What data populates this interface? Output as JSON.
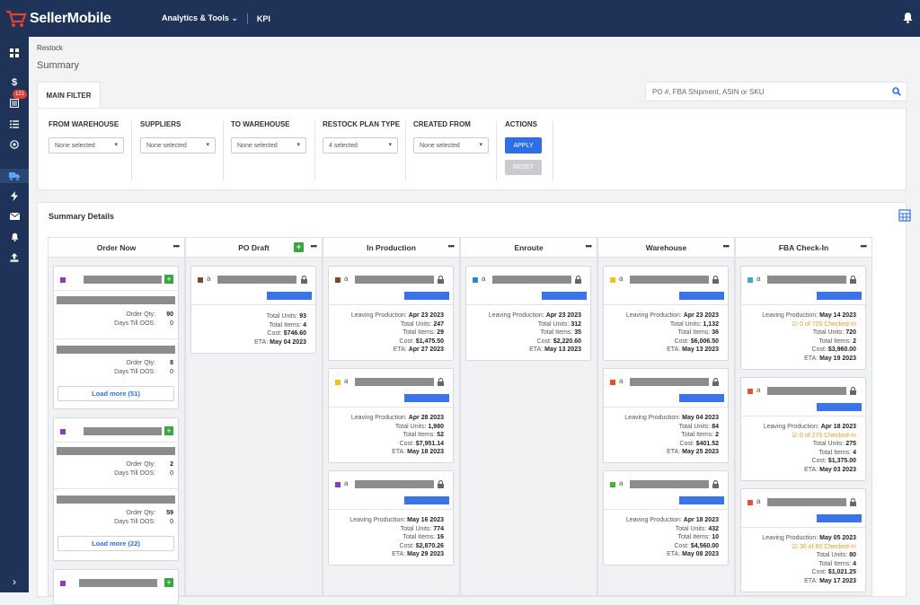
{
  "app": {
    "name": "SellerMobile"
  },
  "nav": {
    "analytics": "Analytics & Tools ⌄",
    "kpi": "KPI"
  },
  "sidebar": {
    "badge": "121"
  },
  "breadcrumb": "Restock",
  "page_title": "Summary",
  "tab": "MAIN FILTER",
  "search": {
    "placeholder": "PO #, FBA Shipment, ASIN or SKU"
  },
  "filters": {
    "from_warehouse": {
      "label": "FROM WAREHOUSE",
      "value": "None selected"
    },
    "suppliers": {
      "label": "SUPPLIERS",
      "value": "None selected"
    },
    "to_warehouse": {
      "label": "TO WAREHOUSE",
      "value": "None selected"
    },
    "restock_plan_type": {
      "label": "RESTOCK PLAN TYPE",
      "value": "4 selected"
    },
    "created_from": {
      "label": "CREATED FROM",
      "value": "None selected"
    },
    "actions": {
      "label": "ACTIONS",
      "apply": "APPLY",
      "reset": "RESET"
    }
  },
  "details": {
    "title": "Summary Details"
  },
  "columns": [
    {
      "name": "Order Now"
    },
    {
      "name": "PO Draft"
    },
    {
      "name": "In Production"
    },
    {
      "name": "Enroute"
    },
    {
      "name": "Warehouse"
    },
    {
      "name": "FBA Check-In"
    }
  ],
  "order_now": {
    "card1": {
      "qty_label": "Order Qty:",
      "qty1": "90",
      "oos_label": "Days Till OOS:",
      "oos1": "0",
      "qty2": "8",
      "oos2": "0",
      "load": "Load more (51)"
    },
    "card2": {
      "qty_label": "Order Qty:",
      "qty1": "2",
      "oos_label": "Days Till OOS:",
      "oos1": "0",
      "qty2": "59",
      "oos2": "0",
      "load": "Load more (22)"
    }
  },
  "po_draft": {
    "card1": {
      "units_label": "Total Units:",
      "units": "93",
      "items_label": "Total Items:",
      "items": "4",
      "cost_label": "Cost:",
      "cost": "$746.60",
      "eta_label": "ETA:",
      "eta": "May 04 2023"
    }
  },
  "in_production": [
    {
      "lp": "Apr 23 2023",
      "units": "247",
      "items": "29",
      "cost": "$1,475.50",
      "eta": "Apr 27 2023"
    },
    {
      "lp": "Apr 28 2023",
      "units": "1,980",
      "items": "52",
      "cost": "$7,951.14",
      "eta": "May 18 2023"
    },
    {
      "lp": "May 16 2023",
      "units": "774",
      "items": "16",
      "cost": "$2,870.26",
      "eta": "May 29 2023"
    }
  ],
  "enroute": [
    {
      "lp": "Apr 23 2023",
      "units": "312",
      "items": "35",
      "cost": "$2,220.60",
      "eta": "May 13 2023"
    }
  ],
  "warehouse": [
    {
      "lp": "Apr 23 2023",
      "units": "1,132",
      "items": "36",
      "cost": "$6,006.50",
      "eta": "May 13 2023"
    },
    {
      "lp": "May 04 2023",
      "units": "84",
      "items": "2",
      "cost": "$401.52",
      "eta": "May 25 2023"
    },
    {
      "lp": "Apr 18 2023",
      "units": "432",
      "items": "10",
      "cost": "$4,560.00",
      "eta": "May 08 2023"
    }
  ],
  "fba": [
    {
      "lp": "May 14 2023",
      "checked": "0 of 720 Checked-In",
      "units": "720",
      "items": "2",
      "cost": "$3,960.00",
      "eta": "May 19 2023"
    },
    {
      "lp": "Apr 18 2023",
      "checked": "0 of 275 Checked-In",
      "units": "275",
      "items": "4",
      "cost": "$1,375.00",
      "eta": "May 03 2023"
    },
    {
      "lp": "May 05 2023",
      "checked": "30 of 80 Checked-In",
      "units": "80",
      "items": "4",
      "cost": "$1,021.25",
      "eta": "May 17 2023"
    }
  ],
  "labels": {
    "leaving": "Leaving Production:",
    "units": "Total Units:",
    "items": "Total Items:",
    "cost": "Cost:",
    "eta": "ETA:",
    "amz": "a"
  },
  "colors": {
    "nav_bg": "#1f3358",
    "primary": "#2f6fe6",
    "purple": "#8e3bb8",
    "brown": "#7a4a2a",
    "blue": "#2f86d6",
    "yellow": "#f3c21b",
    "red": "#e0552e",
    "green": "#4caf3a",
    "teal": "#45a7c9",
    "orange": "#ea9a2b"
  }
}
